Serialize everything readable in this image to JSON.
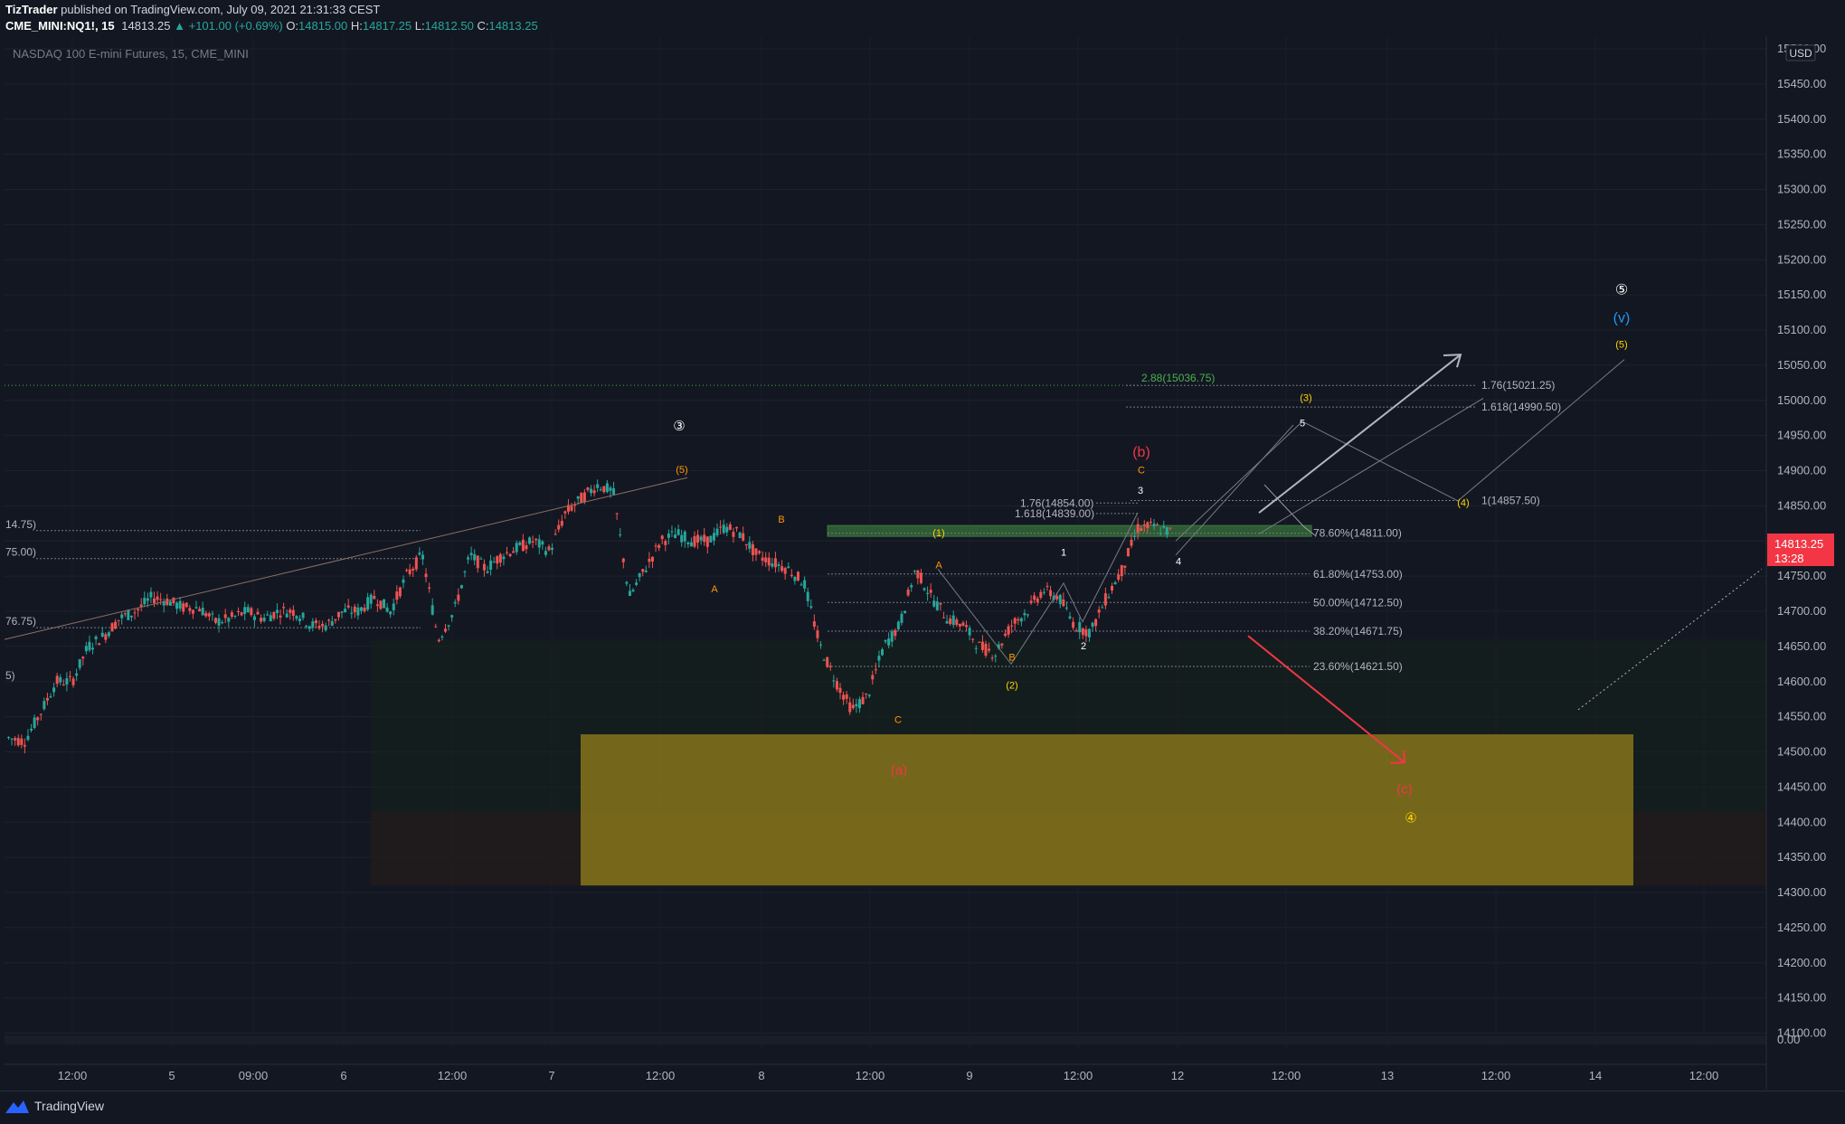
{
  "header": {
    "author": "TizTrader",
    "published": " published on TradingView.com, July 09, 2021 21:31:33 CEST",
    "symbol": "CME_MINI:NQ1!, 15",
    "last": "14813.25",
    "change": "▲ +101.00 (+0.69%)",
    "o_label": "O:",
    "o": "14815.00",
    "h_label": "H:",
    "h": "14817.25",
    "l_label": "L:",
    "l": "14812.50",
    "c_label": "C:",
    "c": "14813.25"
  },
  "instrument_label": "NASDAQ 100 E-mini Futures, 15, CME_MINI",
  "currency": "USD",
  "price_tag": {
    "price": "14813.25",
    "countdown": "13:28"
  },
  "footer": {
    "brand": "TradingView"
  },
  "colors": {
    "bg": "#131722",
    "up": "#26a69a",
    "down": "#ef5350",
    "zone": "#8c7a1a",
    "accent_red": "#f23645"
  },
  "chart_data": {
    "type": "candlestick",
    "y_axis": {
      "ticks": [
        "15500.00",
        "15450.00",
        "15400.00",
        "15350.00",
        "15300.00",
        "15250.00",
        "15200.00",
        "15150.00",
        "15100.00",
        "15050.00",
        "15000.00",
        "14950.00",
        "14900.00",
        "14850.00",
        "14800.00",
        "14750.00",
        "14700.00",
        "14650.00",
        "14600.00",
        "14550.00",
        "14500.00",
        "14450.00",
        "14400.00",
        "14350.00",
        "14300.00",
        "14250.00",
        "14200.00",
        "14150.00",
        "14100.00"
      ],
      "tick_values": [
        15500,
        15450,
        15400,
        15350,
        15300,
        15250,
        15200,
        15150,
        15100,
        15050,
        15000,
        14950,
        14900,
        14850,
        14800,
        14750,
        14700,
        14650,
        14600,
        14550,
        14500,
        14450,
        14400,
        14350,
        14300,
        14250,
        14200,
        14150,
        14100
      ],
      "volume_zero": "0.00"
    },
    "x_axis": {
      "ticks": [
        "12:00",
        "5",
        "09:00",
        "6",
        "12:00",
        "7",
        "12:00",
        "8",
        "12:00",
        "9",
        "12:00",
        "12",
        "12:00",
        "13",
        "12:00",
        "14",
        "12:00"
      ]
    },
    "price_path": [
      [
        14520,
        14515
      ],
      [
        14555,
        14600
      ],
      [
        14600,
        14650
      ],
      [
        14665,
        14690
      ],
      [
        14700,
        14720
      ],
      [
        14715,
        14705
      ],
      [
        14705,
        14685
      ],
      [
        14690,
        14700
      ],
      [
        14690,
        14700
      ],
      [
        14700,
        14680
      ],
      [
        14680,
        14700
      ],
      [
        14700,
        14720
      ],
      [
        14700,
        14750
      ],
      [
        14780,
        14660
      ],
      [
        14700,
        14780
      ],
      [
        14760,
        14780
      ],
      [
        14790,
        14800
      ],
      [
        14785,
        14840
      ],
      [
        14860,
        14880
      ],
      [
        14870,
        14720
      ],
      [
        14760,
        14800
      ],
      [
        14810,
        14800
      ],
      [
        14800,
        14820
      ],
      [
        14810,
        14780
      ],
      [
        14770,
        14760
      ],
      [
        14740,
        14650
      ],
      [
        14600,
        14560
      ],
      [
        14580,
        14650
      ],
      [
        14680,
        14760
      ],
      [
        14720,
        14690
      ],
      [
        14680,
        14650
      ],
      [
        14640,
        14680
      ],
      [
        14700,
        14730
      ],
      [
        14720,
        14680
      ],
      [
        14670,
        14720
      ],
      [
        14760,
        14820
      ],
      [
        14820,
        14813
      ]
    ],
    "fib_levels": [
      {
        "label": "78.60%(14811.00)",
        "value": 14811.0
      },
      {
        "label": "61.80%(14753.00)",
        "value": 14753.0
      },
      {
        "label": "50.00%(14712.50)",
        "value": 14712.5
      },
      {
        "label": "38.20%(14671.75)",
        "value": 14671.75
      },
      {
        "label": "23.60%(14621.50)",
        "value": 14621.5
      }
    ],
    "ext_levels": [
      {
        "label": "2.88(15036.75)",
        "value": 15036.75
      },
      {
        "label": "1.76(15021.25)",
        "value": 15021.25
      },
      {
        "label": "1.618(14990.50)",
        "value": 14990.5
      },
      {
        "label": "1(14857.50)",
        "value": 14857.5
      },
      {
        "label": "1.76(14854.00)",
        "value": 14854.0
      },
      {
        "label": "1.618(14839.00)",
        "value": 14839.0
      }
    ],
    "left_levels": [
      {
        "label": "14.75)",
        "value": 14814.75
      },
      {
        "label": "75.00)",
        "value": 14775.0
      },
      {
        "label": "76.75)",
        "value": 14676.75
      },
      {
        "label": "5)",
        "value": 14600
      }
    ],
    "wave_labels": [
      "③",
      "(5)",
      "B",
      "A",
      "C",
      "(a)",
      "(1)",
      "A",
      "B",
      "(2)",
      "1",
      "2",
      "3",
      "4",
      "5",
      "C",
      "(b)",
      "(3)",
      "(4)",
      "(5)",
      "(v)",
      "⑤",
      "(c)",
      "④"
    ],
    "zone": {
      "low": 14310,
      "high": 14525
    }
  }
}
